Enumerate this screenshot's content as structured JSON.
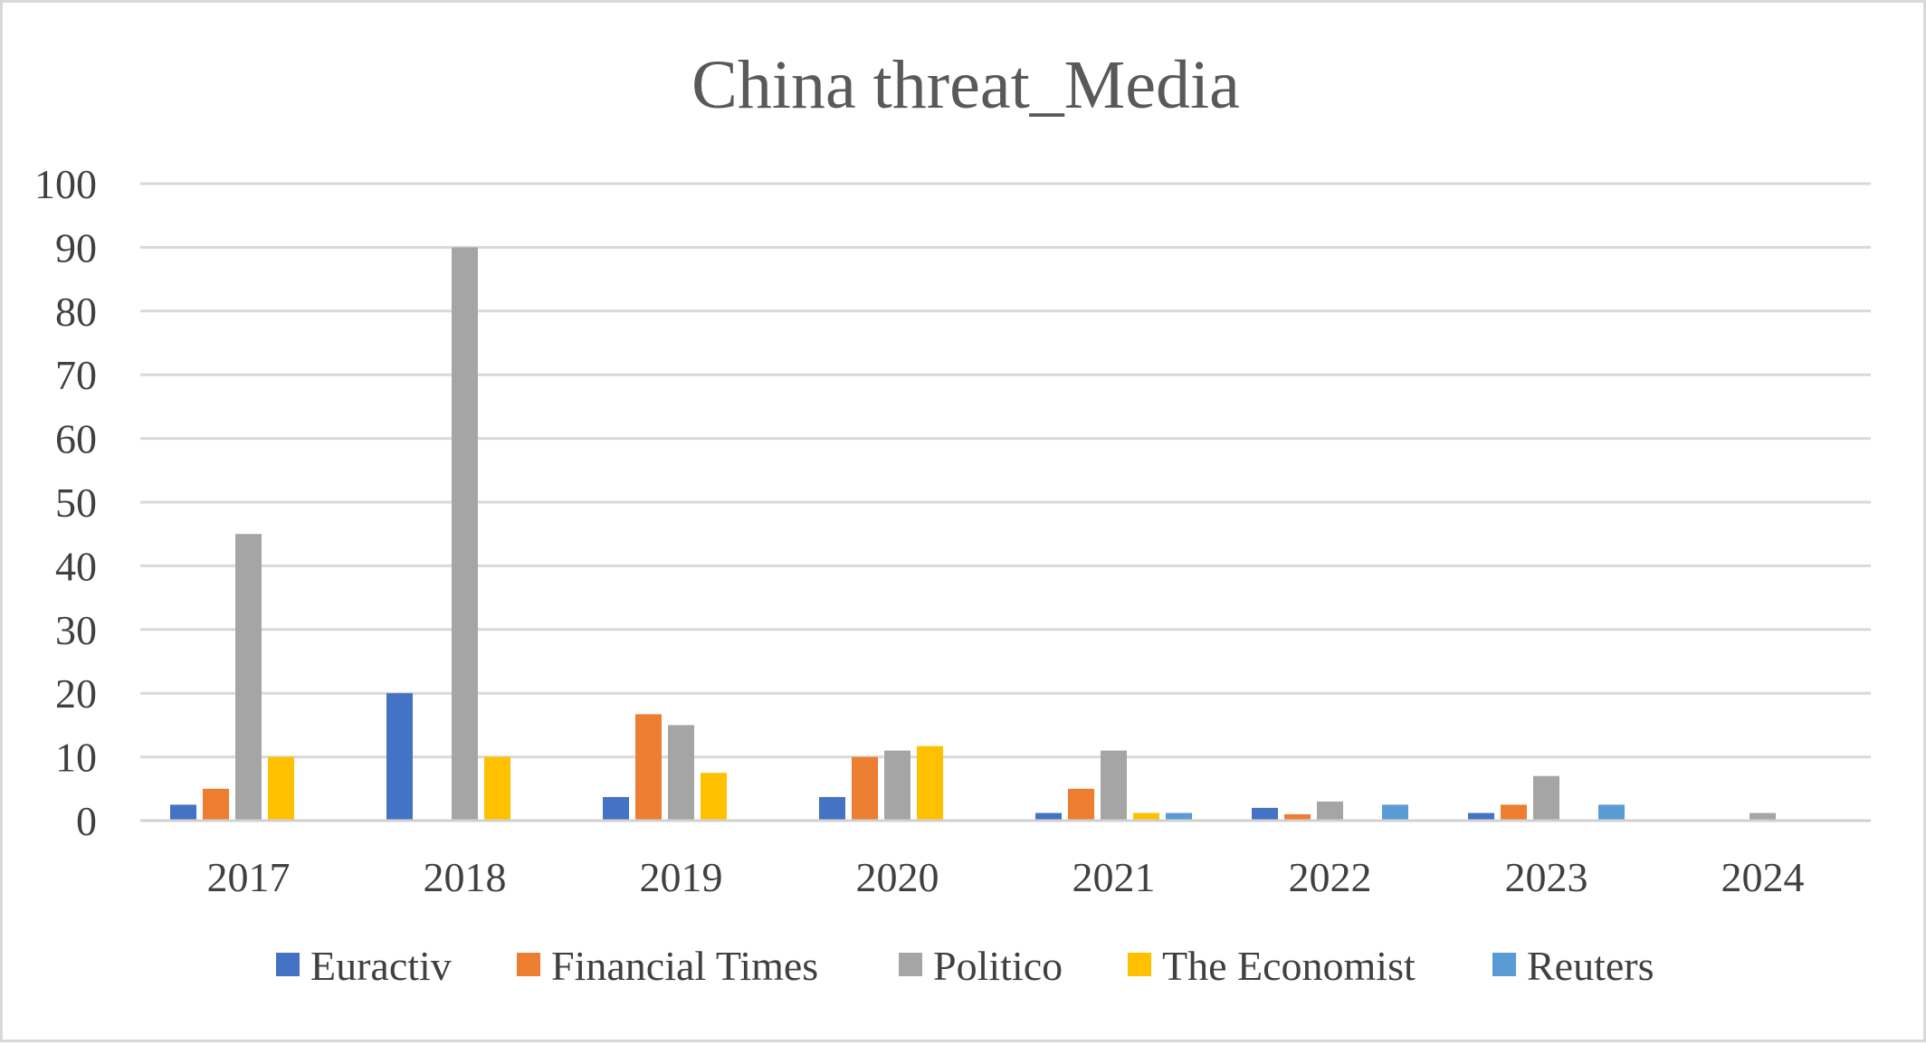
{
  "chart_data": {
    "type": "bar",
    "title": "China threat_Media",
    "xlabel": "",
    "ylabel": "",
    "categories": [
      "2017",
      "2018",
      "2019",
      "2020",
      "2021",
      "2022",
      "2023",
      "2024"
    ],
    "ylim": [
      0,
      100
    ],
    "yticks": [
      0,
      10,
      20,
      30,
      40,
      50,
      60,
      70,
      80,
      90,
      100
    ],
    "grid": true,
    "legend": "bottom",
    "series": [
      {
        "name": "Euractiv",
        "color": "#4472c4",
        "values": [
          2.5,
          20,
          3.7,
          3.7,
          1.2,
          2,
          1.2,
          0
        ]
      },
      {
        "name": "Financial Times",
        "color": "#ed7d31",
        "values": [
          5,
          0,
          16.7,
          10,
          5,
          1,
          2.5,
          0
        ]
      },
      {
        "name": "Politico",
        "color": "#a5a5a5",
        "values": [
          45,
          90,
          15,
          11,
          11,
          3,
          7,
          1.2
        ]
      },
      {
        "name": "The Economist",
        "color": "#ffc000",
        "values": [
          10,
          10,
          7.5,
          11.7,
          1.2,
          0,
          0,
          0
        ]
      },
      {
        "name": "Reuters",
        "color": "#5b9bd5",
        "values": [
          0,
          0,
          0,
          0,
          1.2,
          2.5,
          2.5,
          0
        ]
      }
    ]
  }
}
